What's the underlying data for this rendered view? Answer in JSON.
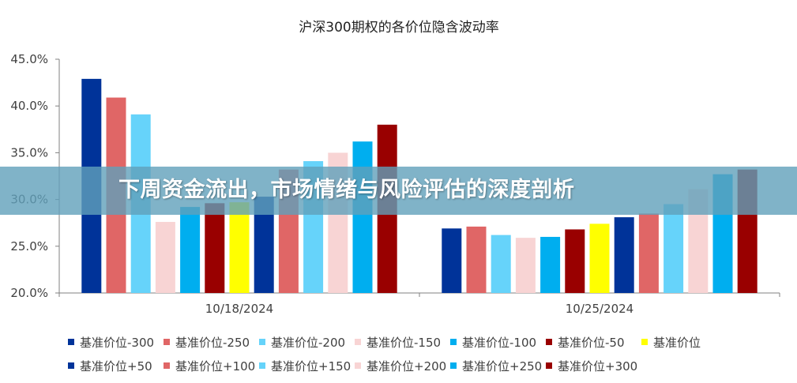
{
  "banner": {
    "headline": "下周资金流出，市场情绪与风险评估的深度剖析"
  },
  "chart_data": {
    "type": "bar",
    "title": "沪深300期权的各价位隐含波动率",
    "xlabel": "",
    "ylabel": "",
    "ylim": [
      0.2,
      0.45
    ],
    "yticks": [
      "20.0%",
      "25.0%",
      "30.0%",
      "35.0%",
      "40.0%",
      "45.0%"
    ],
    "categories": [
      "10/18/2024",
      "10/25/2024"
    ],
    "grid": false,
    "legend_placement": "bottom",
    "series": [
      {
        "name": "基准价位-300",
        "color": "#003399",
        "values": [
          0.429,
          0.269
        ]
      },
      {
        "name": "基准价位-250",
        "color": "#E06666",
        "values": [
          0.409,
          0.271
        ]
      },
      {
        "name": "基准价位-200",
        "color": "#66D3FA",
        "values": [
          0.391,
          0.262
        ]
      },
      {
        "name": "基准价位-150",
        "color": "#F8D4D4",
        "values": [
          0.276,
          0.259
        ]
      },
      {
        "name": "基准价位-100",
        "color": "#00AEEF",
        "values": [
          0.292,
          0.26
        ]
      },
      {
        "name": "基准价位-50",
        "color": "#990000",
        "values": [
          0.296,
          0.268
        ]
      },
      {
        "name": "基准价位",
        "color": "#FFFF00",
        "values": [
          0.297,
          0.274
        ]
      },
      {
        "name": "基准价位+50",
        "color": "#003399",
        "values": [
          0.303,
          0.281
        ]
      },
      {
        "name": "基准价位+100",
        "color": "#E06666",
        "values": [
          0.332,
          0.285
        ]
      },
      {
        "name": "基准价位+150",
        "color": "#66D3FA",
        "values": [
          0.341,
          0.295
        ]
      },
      {
        "name": "基准价位+200",
        "color": "#F8D4D4",
        "values": [
          0.35,
          0.311
        ]
      },
      {
        "name": "基准价位+250",
        "color": "#00AEEF",
        "values": [
          0.362,
          0.327
        ]
      },
      {
        "name": "基准价位+300",
        "color": "#990000",
        "values": [
          0.38,
          0.332
        ]
      }
    ]
  }
}
